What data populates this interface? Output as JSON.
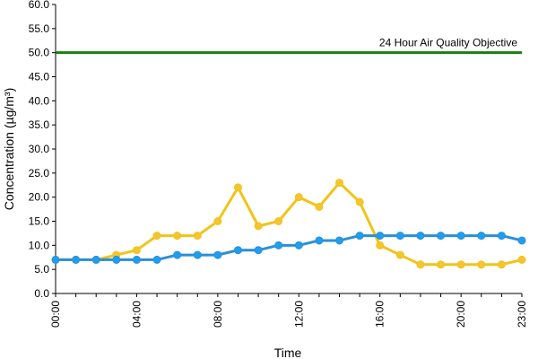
{
  "chart_data": {
    "type": "line",
    "title": "",
    "xlabel": "Time",
    "ylabel": "Concentration (µg/m³)",
    "ylim": [
      0,
      60
    ],
    "xlim": [
      0,
      23
    ],
    "y_ticks": [
      "0.0",
      "5.0",
      "10.0",
      "15.0",
      "20.0",
      "25.0",
      "30.0",
      "35.0",
      "40.0",
      "45.0",
      "50.0",
      "55.0",
      "60.0"
    ],
    "x_tick_hours": [
      0,
      4,
      8,
      12,
      16,
      20,
      23
    ],
    "x_tick_labels": [
      "00:00",
      "04:00",
      "08:00",
      "12:00",
      "16:00",
      "20:00",
      "23:00"
    ],
    "x": [
      0,
      1,
      2,
      3,
      4,
      5,
      6,
      7,
      8,
      9,
      10,
      11,
      12,
      13,
      14,
      15,
      16,
      17,
      18,
      19,
      20,
      21,
      22,
      23
    ],
    "grid": false,
    "legend": "none",
    "series": [
      {
        "color": "#f5c431",
        "stroke_color": "#f0c419",
        "values": [
          7,
          7,
          7,
          8,
          9,
          12,
          12,
          12,
          15,
          22,
          14,
          15,
          20,
          18,
          23,
          19,
          10,
          8,
          6,
          6,
          6,
          6,
          6,
          7
        ]
      },
      {
        "color": "#1f9ef0",
        "stroke_color": "#2a8fd8",
        "values": [
          7,
          7,
          7,
          7,
          7,
          7,
          8,
          8,
          8,
          9,
          9,
          10,
          10,
          11,
          11,
          12,
          12,
          12,
          12,
          12,
          12,
          12,
          12,
          11
        ]
      }
    ],
    "reference_line": {
      "label": "24 Hour Air Quality Objective",
      "value": 50,
      "color": "#157f16"
    }
  }
}
